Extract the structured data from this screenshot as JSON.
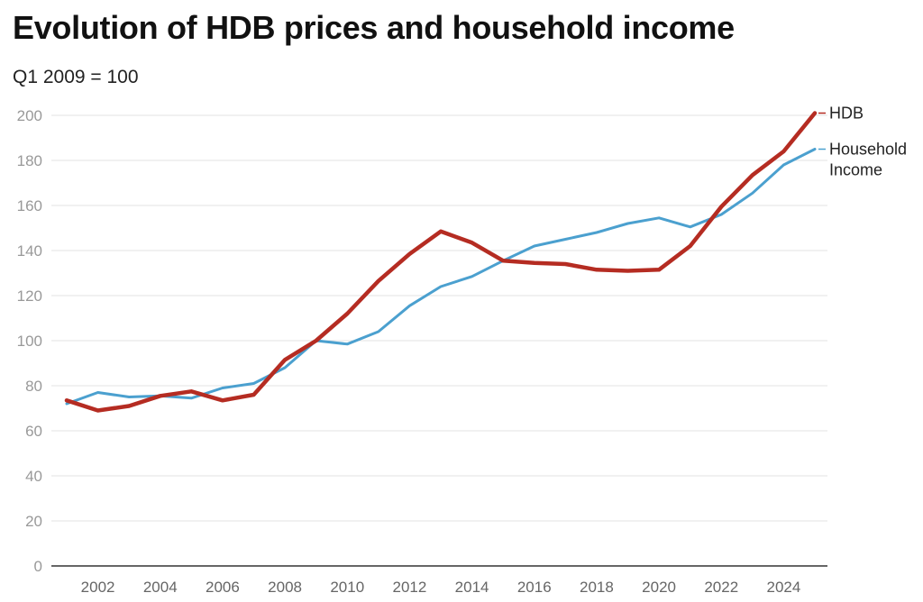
{
  "chart_data": {
    "type": "line",
    "title": "Evolution of HDB prices and household income",
    "subtitle": "Q1 2009 = 100",
    "xlabel": "",
    "ylabel": "",
    "xlim": [
      2001,
      2025
    ],
    "ylim": [
      0,
      200
    ],
    "x_ticks": [
      2002,
      2004,
      2006,
      2008,
      2010,
      2012,
      2014,
      2016,
      2018,
      2020,
      2022,
      2024
    ],
    "y_ticks": [
      0,
      20,
      40,
      60,
      80,
      100,
      120,
      140,
      160,
      180,
      200
    ],
    "grid": true,
    "legend": "direct labels at line ends",
    "x": [
      2001,
      2002,
      2003,
      2004,
      2005,
      2006,
      2007,
      2008,
      2009,
      2010,
      2011,
      2012,
      2013,
      2014,
      2015,
      2016,
      2017,
      2018,
      2019,
      2020,
      2021,
      2022,
      2023,
      2024,
      2025
    ],
    "series": [
      {
        "name": "Household Income",
        "label_lines": [
          "Household",
          "Income"
        ],
        "color": "#4ba0cf",
        "values": [
          72,
          77,
          75,
          75.5,
          74.5,
          79,
          81,
          88,
          100,
          98.5,
          104,
          115.5,
          124,
          128.5,
          135.5,
          142,
          145,
          148,
          152,
          154.5,
          150.5,
          156,
          165.5,
          178,
          185
        ]
      },
      {
        "name": "HDB",
        "label_lines": [
          "HDB"
        ],
        "color": "#b52c22",
        "values": [
          73.5,
          69,
          71,
          75.5,
          77.5,
          73.5,
          76,
          91.5,
          100,
          112,
          126.5,
          138.5,
          148.5,
          143.5,
          135.5,
          134.5,
          134,
          131.5,
          131,
          131.5,
          142,
          159.5,
          173.5,
          184,
          201
        ]
      }
    ]
  }
}
